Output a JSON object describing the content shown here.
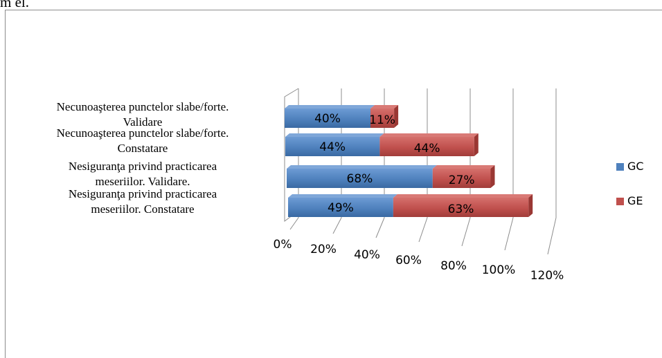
{
  "page": {
    "top_text": "m el."
  },
  "chart_data": {
    "type": "bar",
    "orientation": "horizontal",
    "stacked": true,
    "style": "3d",
    "categories": [
      "Necunoaşterea punctelor slabe/forte. Validare",
      "Necunoaşterea punctelor slabe/forte. Constatare",
      "Nesiguranţa privind practicarea meseriilor. Validare.",
      "Nesiguranţa privind practicarea meseriilor. Constatare"
    ],
    "category_label_lines": [
      [
        "Necunoaşterea punctelor slabe/forte.",
        "Validare"
      ],
      [
        "Necunoaşterea punctelor slabe/forte.",
        "Constatare"
      ],
      [
        "Nesiguranţa privind practicarea",
        "meseriilor. Validare."
      ],
      [
        "Nesiguranţa privind practicarea",
        "meseriilor. Constatare"
      ]
    ],
    "series": [
      {
        "name": "GC",
        "color": "#4f81bd",
        "values": [
          40,
          44,
          68,
          49
        ],
        "labels": [
          "40%",
          "44%",
          "68%",
          "49%"
        ]
      },
      {
        "name": "GE",
        "color": "#c0504d",
        "values": [
          11,
          44,
          27,
          63
        ],
        "labels": [
          "11%",
          "44%",
          "27%",
          "63%"
        ]
      }
    ],
    "x_ticks": [
      "0%",
      "20%",
      "40%",
      "60%",
      "80%",
      "100%",
      "120%"
    ],
    "xlim": [
      0,
      120
    ],
    "grid": true,
    "legend_position": "right",
    "title": "",
    "xlabel": "",
    "ylabel": ""
  }
}
